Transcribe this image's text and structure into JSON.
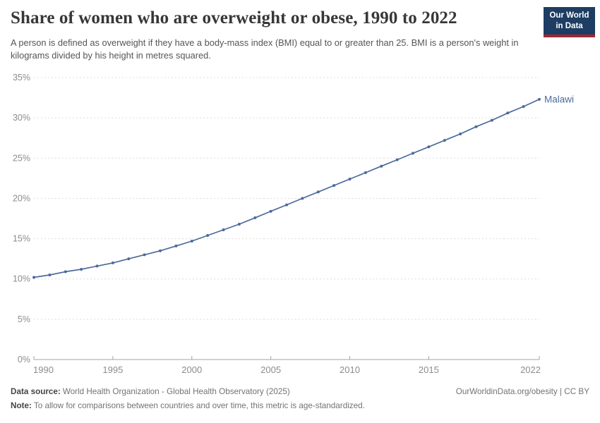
{
  "header": {
    "title": "Share of women who are overweight or obese, 1990 to 2022",
    "subtitle": "A person is defined as overweight if they have a body-mass index (BMI) equal to or greater than 25. BMI is a person's weight in kilograms divided by his height in metres squared.",
    "logo": {
      "line1": "Our World",
      "line2": "in Data",
      "bg_color": "#1d3d63",
      "stripe_color": "#a02733"
    }
  },
  "chart_data": {
    "type": "line",
    "title": "Share of women who are overweight or obese, 1990 to 2022",
    "grid": "horizontal dashed",
    "legend_position": "end-of-line label",
    "xlim": [
      1990,
      2022
    ],
    "ylim": [
      0,
      35
    ],
    "x_ticks": [
      1990,
      1995,
      2000,
      2005,
      2010,
      2015,
      2022
    ],
    "y_ticks": [
      0,
      5,
      10,
      15,
      20,
      25,
      30,
      35
    ],
    "y_tick_suffix": "%",
    "xlabel": "",
    "ylabel": "",
    "colors": {
      "line": "#4c6a9c",
      "grid": "#dcdcdc",
      "axis": "#a3a3a3",
      "tick_label": "#8c8c8c"
    },
    "series": [
      {
        "name": "Malawi",
        "color": "#4c6a9c",
        "x": [
          1990,
          1991,
          1992,
          1993,
          1994,
          1995,
          1996,
          1997,
          1998,
          1999,
          2000,
          2001,
          2002,
          2003,
          2004,
          2005,
          2006,
          2007,
          2008,
          2009,
          2010,
          2011,
          2012,
          2013,
          2014,
          2015,
          2016,
          2017,
          2018,
          2019,
          2020,
          2021,
          2022
        ],
        "values": [
          10.2,
          10.5,
          10.9,
          11.2,
          11.6,
          12.0,
          12.5,
          13.0,
          13.5,
          14.1,
          14.7,
          15.4,
          16.1,
          16.8,
          17.6,
          18.4,
          19.2,
          20.0,
          20.8,
          21.6,
          22.4,
          23.2,
          24.0,
          24.8,
          25.6,
          26.4,
          27.2,
          28.0,
          28.9,
          29.7,
          30.6,
          31.4,
          32.3
        ]
      }
    ]
  },
  "footer": {
    "source_label": "Data source:",
    "source_text": "World Health Organization - Global Health Observatory (2025)",
    "note_label": "Note:",
    "note_text": "To allow for comparisons between countries and over time, this metric is age-standardized.",
    "link_text": "OurWorldinData.org/obesity | CC BY"
  }
}
